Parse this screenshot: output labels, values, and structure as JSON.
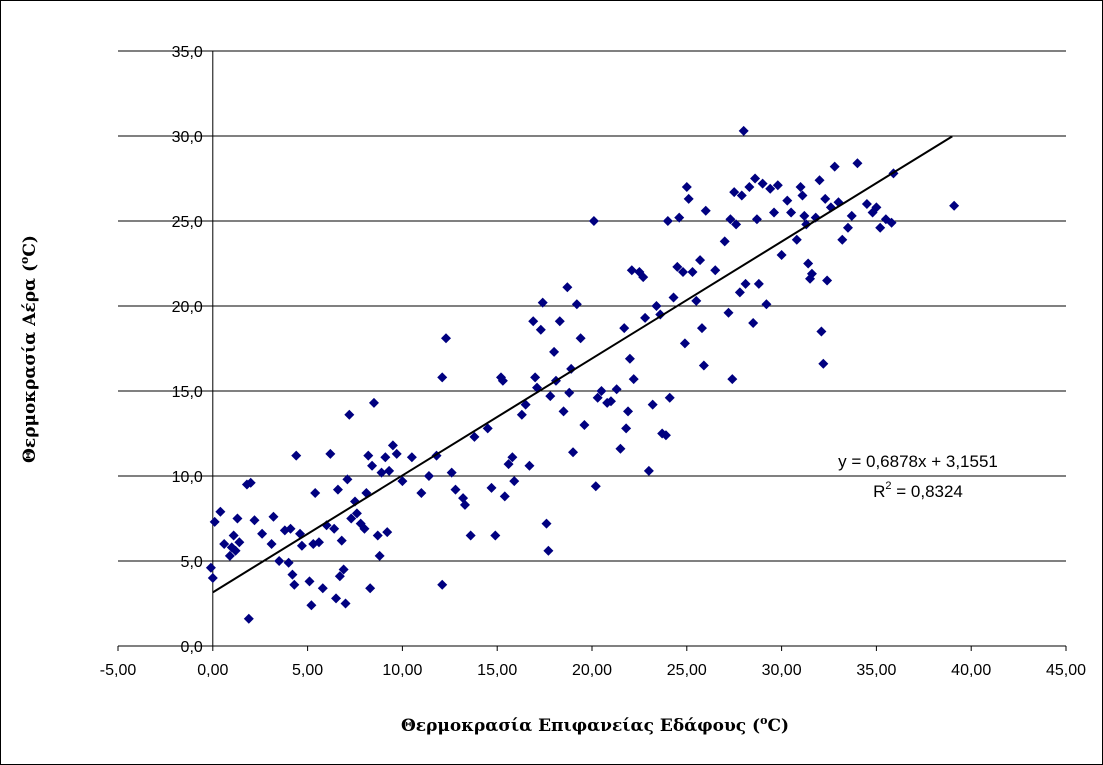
{
  "chart_data": {
    "type": "scatter",
    "xlabel": "Θερμοκρασία Επιφανείας Εδάφους (°C)",
    "ylabel_main": "Θερμοκρασία Αέρα (",
    "ylabel_sup": "o",
    "ylabel_end": "C)",
    "xlabel_main": "Θερμοκρασία Επιφανείας Εδάφους (",
    "xlabel_sup": "o",
    "xlabel_end": "C)",
    "xlim": [
      -5,
      45
    ],
    "ylim": [
      0,
      35
    ],
    "x_ticks": [
      -5,
      0,
      5,
      10,
      15,
      20,
      25,
      30,
      35,
      40,
      45
    ],
    "y_ticks": [
      0,
      5,
      10,
      15,
      20,
      25,
      30,
      35
    ],
    "x_tick_labels": [
      "-5,00",
      "0,00",
      "5,00",
      "10,00",
      "15,00",
      "20,00",
      "25,00",
      "30,00",
      "35,00",
      "40,00",
      "45,00"
    ],
    "y_tick_labels": [
      "0,0",
      "5,0",
      "10,0",
      "15,0",
      "20,0",
      "25,0",
      "30,0",
      "35,0"
    ],
    "grid": "horizontal",
    "legend": "none",
    "marker_color": "#000080",
    "trendline": {
      "slope": 0.6878,
      "intercept": 3.1551,
      "x_range": [
        0,
        39
      ],
      "equation_label": "y = 0,6878x + 3,1551",
      "r2_prefix": "R",
      "r2_sup": "2",
      "r2_suffix": " = 0,8324",
      "color": "#000000"
    },
    "points": [
      [
        -0.1,
        4.6
      ],
      [
        0.0,
        4.0
      ],
      [
        0.1,
        7.3
      ],
      [
        0.4,
        7.9
      ],
      [
        0.6,
        6.0
      ],
      [
        0.9,
        5.3
      ],
      [
        1.0,
        5.8
      ],
      [
        1.1,
        6.5
      ],
      [
        1.2,
        5.6
      ],
      [
        1.3,
        7.5
      ],
      [
        1.4,
        6.1
      ],
      [
        1.8,
        9.5
      ],
      [
        2.0,
        9.6
      ],
      [
        1.9,
        1.6
      ],
      [
        2.2,
        7.4
      ],
      [
        2.6,
        6.6
      ],
      [
        3.1,
        6.0
      ],
      [
        3.2,
        7.6
      ],
      [
        3.5,
        5.0
      ],
      [
        3.8,
        6.8
      ],
      [
        4.0,
        4.9
      ],
      [
        4.1,
        6.9
      ],
      [
        4.2,
        4.2
      ],
      [
        4.3,
        3.6
      ],
      [
        4.4,
        11.2
      ],
      [
        4.6,
        6.6
      ],
      [
        4.7,
        5.9
      ],
      [
        5.1,
        3.8
      ],
      [
        5.3,
        6.0
      ],
      [
        5.4,
        9.0
      ],
      [
        5.2,
        2.4
      ],
      [
        5.6,
        6.1
      ],
      [
        5.8,
        3.4
      ],
      [
        6.0,
        7.1
      ],
      [
        6.2,
        11.3
      ],
      [
        6.4,
        6.9
      ],
      [
        6.5,
        2.8
      ],
      [
        6.6,
        9.2
      ],
      [
        6.7,
        4.1
      ],
      [
        6.8,
        6.2
      ],
      [
        6.9,
        4.5
      ],
      [
        7.0,
        2.5
      ],
      [
        7.1,
        9.8
      ],
      [
        7.2,
        13.6
      ],
      [
        7.3,
        7.5
      ],
      [
        7.5,
        8.5
      ],
      [
        7.6,
        7.8
      ],
      [
        7.8,
        7.2
      ],
      [
        8.0,
        6.9
      ],
      [
        8.1,
        9.0
      ],
      [
        8.2,
        11.2
      ],
      [
        8.3,
        3.4
      ],
      [
        8.4,
        10.6
      ],
      [
        8.5,
        14.3
      ],
      [
        8.7,
        6.5
      ],
      [
        8.8,
        5.3
      ],
      [
        8.9,
        10.2
      ],
      [
        9.1,
        11.1
      ],
      [
        9.2,
        6.7
      ],
      [
        9.3,
        10.3
      ],
      [
        9.5,
        11.8
      ],
      [
        9.7,
        11.3
      ],
      [
        10.0,
        9.7
      ],
      [
        10.5,
        11.1
      ],
      [
        11.0,
        9.0
      ],
      [
        11.4,
        10.0
      ],
      [
        11.8,
        11.2
      ],
      [
        12.1,
        15.8
      ],
      [
        12.1,
        3.6
      ],
      [
        12.3,
        18.1
      ],
      [
        12.6,
        10.2
      ],
      [
        12.8,
        9.2
      ],
      [
        13.2,
        8.7
      ],
      [
        13.3,
        8.3
      ],
      [
        13.6,
        6.5
      ],
      [
        13.8,
        12.3
      ],
      [
        14.5,
        12.8
      ],
      [
        14.7,
        9.3
      ],
      [
        14.9,
        6.5
      ],
      [
        15.2,
        15.8
      ],
      [
        15.3,
        15.6
      ],
      [
        15.4,
        8.8
      ],
      [
        15.6,
        10.7
      ],
      [
        15.8,
        11.1
      ],
      [
        15.9,
        9.7
      ],
      [
        16.3,
        13.6
      ],
      [
        16.5,
        14.2
      ],
      [
        16.7,
        10.6
      ],
      [
        16.9,
        19.1
      ],
      [
        17.0,
        15.8
      ],
      [
        17.1,
        15.2
      ],
      [
        17.3,
        18.6
      ],
      [
        17.4,
        20.2
      ],
      [
        17.6,
        7.2
      ],
      [
        17.7,
        5.6
      ],
      [
        17.8,
        14.7
      ],
      [
        18.0,
        17.3
      ],
      [
        18.1,
        15.6
      ],
      [
        18.3,
        19.1
      ],
      [
        18.5,
        13.8
      ],
      [
        18.7,
        21.1
      ],
      [
        18.8,
        14.9
      ],
      [
        18.9,
        16.3
      ],
      [
        19.0,
        11.4
      ],
      [
        19.2,
        20.1
      ],
      [
        19.4,
        18.1
      ],
      [
        19.6,
        13.0
      ],
      [
        20.1,
        25.0
      ],
      [
        20.2,
        9.4
      ],
      [
        20.3,
        14.6
      ],
      [
        20.5,
        15.0
      ],
      [
        20.8,
        14.3
      ],
      [
        21.0,
        14.4
      ],
      [
        21.3,
        15.1
      ],
      [
        21.5,
        11.6
      ],
      [
        21.7,
        18.7
      ],
      [
        21.8,
        12.8
      ],
      [
        21.9,
        13.8
      ],
      [
        22.0,
        16.9
      ],
      [
        22.1,
        22.1
      ],
      [
        22.2,
        15.7
      ],
      [
        22.5,
        22.0
      ],
      [
        22.7,
        21.7
      ],
      [
        22.8,
        19.3
      ],
      [
        23.0,
        10.3
      ],
      [
        23.2,
        14.2
      ],
      [
        23.4,
        20.0
      ],
      [
        23.6,
        19.5
      ],
      [
        23.7,
        12.5
      ],
      [
        23.9,
        12.4
      ],
      [
        24.0,
        25.0
      ],
      [
        24.1,
        14.6
      ],
      [
        24.3,
        20.5
      ],
      [
        24.5,
        22.3
      ],
      [
        24.6,
        25.2
      ],
      [
        24.8,
        22.0
      ],
      [
        24.9,
        17.8
      ],
      [
        25.0,
        27.0
      ],
      [
        25.1,
        26.3
      ],
      [
        25.3,
        22.0
      ],
      [
        25.5,
        20.3
      ],
      [
        25.7,
        22.7
      ],
      [
        25.8,
        18.7
      ],
      [
        25.9,
        16.5
      ],
      [
        26.0,
        25.6
      ],
      [
        26.5,
        22.1
      ],
      [
        27.0,
        23.8
      ],
      [
        27.2,
        19.6
      ],
      [
        27.3,
        25.1
      ],
      [
        27.4,
        15.7
      ],
      [
        27.5,
        26.7
      ],
      [
        27.6,
        24.8
      ],
      [
        27.8,
        20.8
      ],
      [
        27.9,
        26.5
      ],
      [
        28.0,
        30.3
      ],
      [
        28.1,
        21.3
      ],
      [
        28.3,
        27.0
      ],
      [
        28.5,
        19.0
      ],
      [
        28.6,
        27.5
      ],
      [
        28.7,
        25.1
      ],
      [
        28.8,
        21.3
      ],
      [
        29.0,
        27.2
      ],
      [
        29.2,
        20.1
      ],
      [
        29.4,
        26.9
      ],
      [
        29.6,
        25.5
      ],
      [
        29.8,
        27.1
      ],
      [
        30.0,
        23.0
      ],
      [
        30.3,
        26.2
      ],
      [
        30.5,
        25.5
      ],
      [
        30.8,
        23.9
      ],
      [
        31.0,
        27.0
      ],
      [
        31.1,
        26.5
      ],
      [
        31.2,
        25.3
      ],
      [
        31.3,
        24.8
      ],
      [
        31.4,
        22.5
      ],
      [
        31.5,
        21.6
      ],
      [
        31.6,
        21.9
      ],
      [
        31.8,
        25.2
      ],
      [
        32.0,
        27.4
      ],
      [
        32.1,
        18.5
      ],
      [
        32.2,
        16.6
      ],
      [
        32.3,
        26.3
      ],
      [
        32.4,
        21.5
      ],
      [
        32.6,
        25.8
      ],
      [
        32.8,
        28.2
      ],
      [
        33.0,
        26.1
      ],
      [
        33.2,
        23.9
      ],
      [
        33.5,
        24.6
      ],
      [
        33.7,
        25.3
      ],
      [
        34.0,
        28.4
      ],
      [
        34.5,
        26.0
      ],
      [
        34.8,
        25.5
      ],
      [
        35.0,
        25.8
      ],
      [
        35.2,
        24.6
      ],
      [
        35.5,
        25.1
      ],
      [
        35.8,
        24.9
      ],
      [
        35.9,
        27.8
      ],
      [
        39.1,
        25.9
      ]
    ]
  }
}
